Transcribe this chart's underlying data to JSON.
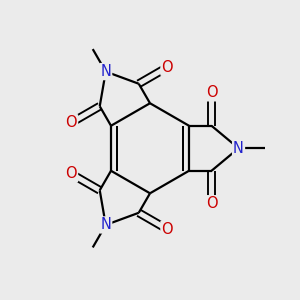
{
  "bg_color": "#ebebeb",
  "atom_colors": {
    "C": "#000000",
    "N": "#2222cc",
    "O": "#cc0000"
  },
  "bond_color": "#000000",
  "bond_width": 1.6,
  "font_size_atom": 10.5,
  "font_size_me": 8.5
}
